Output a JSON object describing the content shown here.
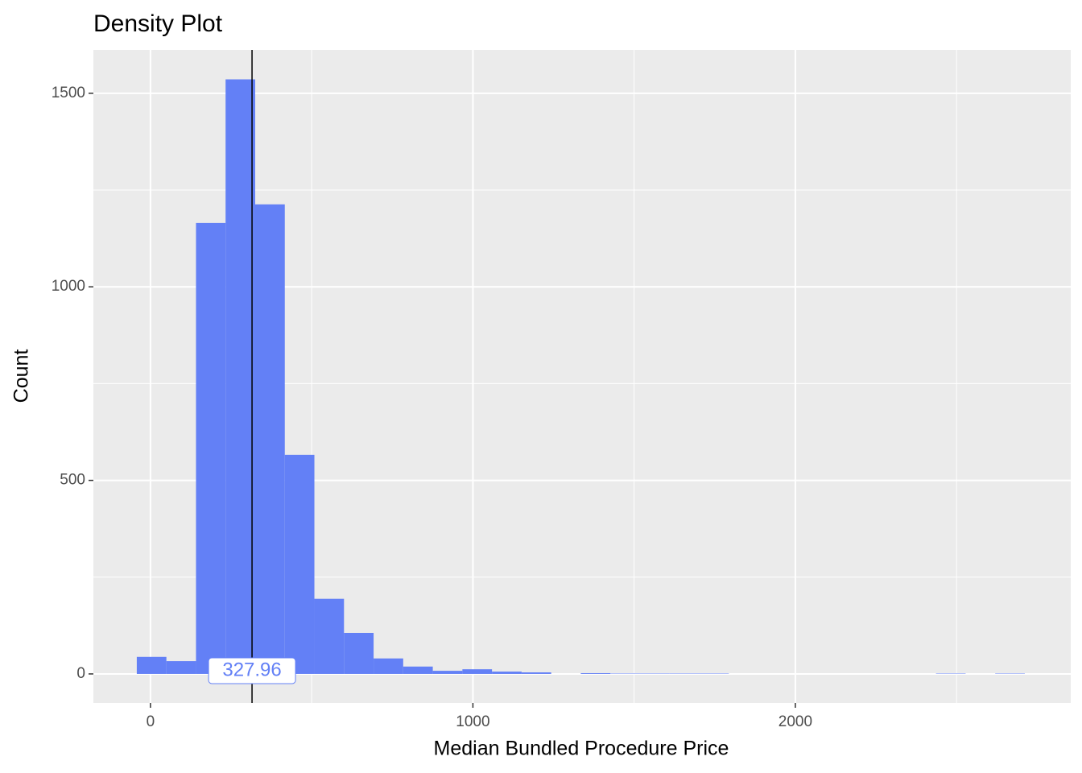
{
  "chart_data": {
    "type": "histogram",
    "title": "Density Plot",
    "xlabel": "Median Bundled Procedure Price",
    "ylabel": "Count",
    "bins": [
      -42.4,
      49.4,
      141.2,
      233.0,
      324.8,
      416.6,
      508.4,
      600.2,
      692.0,
      783.8,
      875.6,
      967.4,
      1059.2,
      1151.0,
      1242.8,
      1334.6,
      1426.4,
      1518.2,
      1610.0,
      1701.8,
      1793.6,
      1885.4,
      1977.2,
      2069.0,
      2160.8,
      2252.6,
      2344.4,
      2436.2,
      2528.0,
      2619.8,
      2711.6
    ],
    "values": [
      44,
      33,
      1165,
      1536,
      1213,
      566,
      194,
      106,
      40,
      19,
      8,
      12,
      6,
      4,
      0,
      2,
      1,
      1,
      1,
      1,
      0,
      0,
      0,
      0,
      0,
      0,
      0,
      1,
      0,
      1
    ],
    "color": "#6380f6",
    "xlim": [
      -177,
      2854
    ],
    "ylim": [
      -75,
      1612
    ],
    "xticks": [
      0,
      1000,
      2000
    ],
    "xminor": [
      500,
      1500,
      2500
    ],
    "yticks": [
      0,
      500,
      1000,
      1500
    ],
    "yminor": [
      250,
      750,
      1250
    ],
    "grid": true,
    "vline": 315,
    "annotation": "327.96"
  }
}
